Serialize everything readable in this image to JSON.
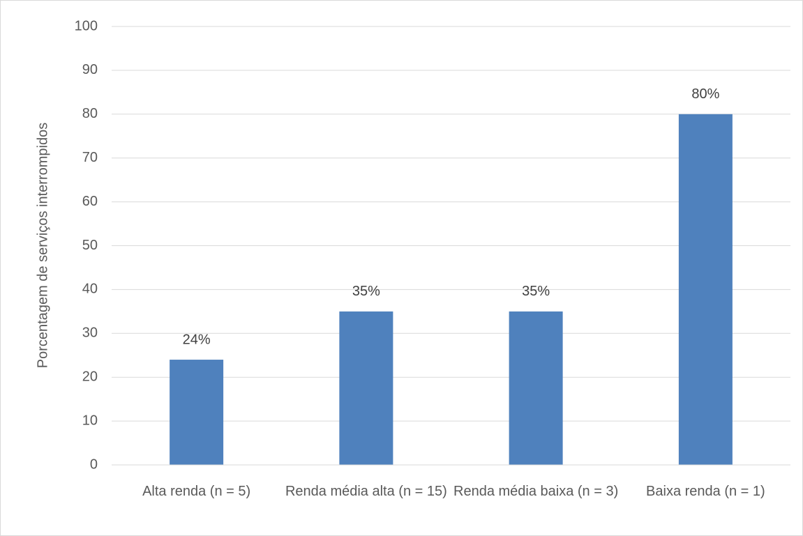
{
  "chart_data": {
    "type": "bar",
    "y_label": "Porcentagem de serviços interrompidos",
    "categories": [
      "Alta renda (n = 5)",
      "Renda média alta (n = 15)",
      "Renda média baixa (n = 3)",
      "Baixa renda (n = 1)"
    ],
    "values": [
      24,
      35,
      35,
      80
    ],
    "value_labels": [
      "24%",
      "35%",
      "35%",
      "80%"
    ],
    "color": "#4f81bd",
    "ylim": [
      0,
      100
    ],
    "yticks": [
      0,
      10,
      20,
      30,
      40,
      50,
      60,
      70,
      80,
      90,
      100
    ],
    "grid": true
  }
}
